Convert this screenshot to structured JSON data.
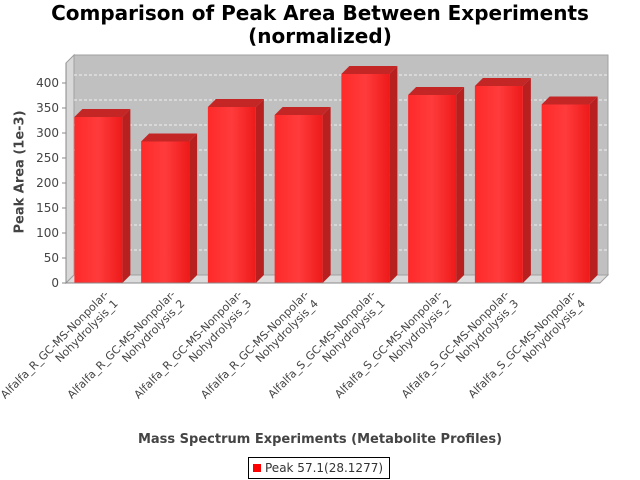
{
  "chart_data": {
    "type": "bar",
    "title": "Comparison of Peak Area Between Experiments (normalized)",
    "title_lines": [
      "Comparison of Peak Area Between Experiments",
      "(normalized)"
    ],
    "xlabel": "Mass Spectrum Experiments (Metabolite Profiles)",
    "ylabel": "Peak Area (1e-3)",
    "ylim": [
      0,
      440
    ],
    "yticks": [
      0,
      50,
      100,
      150,
      200,
      250,
      300,
      350,
      400
    ],
    "grid": true,
    "legend_position": "bottom",
    "categories": [
      "Alfalfa_R_GC-MS-Nonpolar-Nohydrolysis_1",
      "Alfalfa_R_GC-MS-Nonpolar-Nohydrolysis_2",
      "Alfalfa_R_GC-MS-Nonpolar-Nohydrolysis_3",
      "Alfalfa_R_GC-MS-Nonpolar-Nohydrolysis_4",
      "Alfalfa_S_GC-MS-Nonpolar-Nohydrolysis_1",
      "Alfalfa_S_GC-MS-Nonpolar-Nohydrolysis_2",
      "Alfalfa_S_GC-MS-Nonpolar-Nohydrolysis_3",
      "Alfalfa_S_GC-MS-Nonpolar-Nohydrolysis_4"
    ],
    "category_lines": [
      [
        "Alfalfa_R_GC-MS-Nonpolar-",
        "Nohydrolysis_1"
      ],
      [
        "Alfalfa_R_GC-MS-Nonpolar-",
        "Nohydrolysis_2"
      ],
      [
        "Alfalfa_R_GC-MS-Nonpolar-",
        "Nohydrolysis_3"
      ],
      [
        "Alfalfa_R_GC-MS-Nonpolar-",
        "Nohydrolysis_4"
      ],
      [
        "Alfalfa_S_GC-MS-Nonpolar-",
        "Nohydrolysis_1"
      ],
      [
        "Alfalfa_S_GC-MS-Nonpolar-",
        "Nohydrolysis_2"
      ],
      [
        "Alfalfa_S_GC-MS-Nonpolar-",
        "Nohydrolysis_3"
      ],
      [
        "Alfalfa_S_GC-MS-Nonpolar-",
        "Nohydrolysis_4"
      ]
    ],
    "series": [
      {
        "name": "Peak 57.1(28.1277)",
        "color": "#ff0000",
        "values": [
          332,
          283,
          352,
          336,
          418,
          376,
          394,
          357
        ]
      }
    ]
  }
}
